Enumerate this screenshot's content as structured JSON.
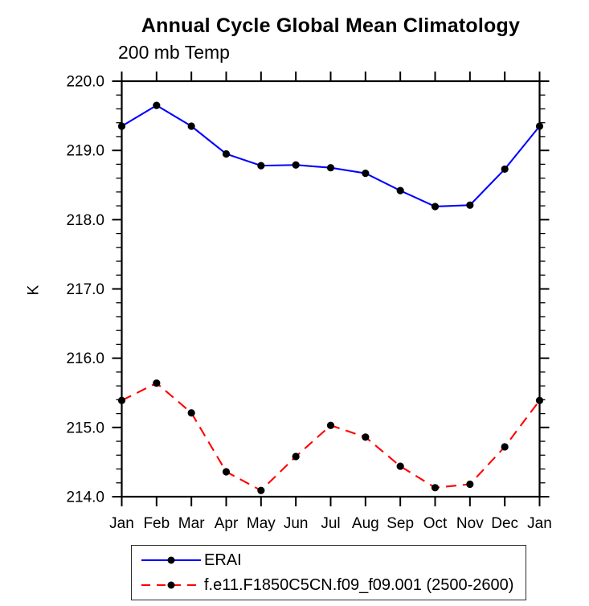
{
  "figure": {
    "background": "#ffffff",
    "text_color": "#000000"
  },
  "chart_data": {
    "type": "line",
    "title": "Annual Cycle Global Mean Climatology",
    "subtitle": "200 mb Temp",
    "ylabel": "K",
    "xlabel": "",
    "ylim": [
      214.0,
      220.0
    ],
    "ytick_interval": 1.0,
    "yminor_interval": 0.2,
    "ytick_decimals": 1,
    "grid": false,
    "legend_position": "bottom-left-box",
    "x_categories": [
      "Jan",
      "Feb",
      "Mar",
      "Apr",
      "May",
      "Jun",
      "Jul",
      "Aug",
      "Sep",
      "Oct",
      "Nov",
      "Dec",
      "Jan"
    ],
    "series": [
      {
        "name": "ERAI",
        "color": "#0000ff",
        "line_style": "solid",
        "marker": "filled-circle",
        "marker_color": "#000000",
        "values": [
          219.35,
          219.65,
          219.35,
          218.95,
          218.78,
          218.79,
          218.75,
          218.67,
          218.42,
          218.19,
          218.21,
          218.73,
          219.35
        ]
      },
      {
        "name": "f.e11.F1850C5CN.f09_f09.001 (2500-2600)",
        "color": "#ff0000",
        "line_style": "dashed",
        "marker": "filled-circle",
        "marker_color": "#000000",
        "values": [
          215.39,
          215.64,
          215.21,
          214.36,
          214.09,
          214.58,
          215.03,
          214.86,
          214.44,
          214.13,
          214.18,
          214.72,
          215.39
        ]
      }
    ]
  }
}
